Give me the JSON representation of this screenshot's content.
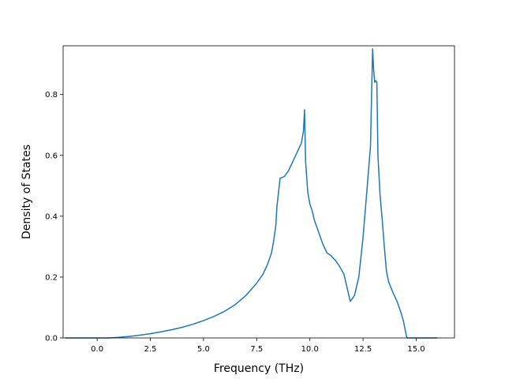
{
  "chart_data": {
    "type": "line",
    "title": "",
    "xlabel": "Frequency (THz)",
    "ylabel": "Density of States",
    "xlim": [
      -1.6,
      16.8
    ],
    "ylim": [
      0.0,
      0.96
    ],
    "xticks": [
      0.0,
      2.5,
      5.0,
      7.5,
      10.0,
      12.5,
      15.0
    ],
    "xtick_labels": [
      "0.0",
      "2.5",
      "5.0",
      "7.5",
      "10.0",
      "12.5",
      "15.0"
    ],
    "yticks": [
      0.0,
      0.2,
      0.4,
      0.6,
      0.8
    ],
    "ytick_labels": [
      "0.0",
      "0.2",
      "0.4",
      "0.6",
      "0.8"
    ],
    "grid": false,
    "series": [
      {
        "color": "#1f77b4",
        "x": [
          -1.5,
          -1.0,
          -0.5,
          0.0,
          0.5,
          1.0,
          1.5,
          2.0,
          2.5,
          3.0,
          3.5,
          4.0,
          4.5,
          5.0,
          5.5,
          6.0,
          6.5,
          7.0,
          7.5,
          7.8,
          8.0,
          8.2,
          8.3,
          8.4,
          8.45,
          8.6,
          8.8,
          9.0,
          9.2,
          9.4,
          9.6,
          9.7,
          9.75,
          9.8,
          9.9,
          10.0,
          10.1,
          10.2,
          10.4,
          10.6,
          10.8,
          11.0,
          11.2,
          11.4,
          11.6,
          11.8,
          11.9,
          12.1,
          12.3,
          12.5,
          12.7,
          12.85,
          12.95,
          13.0,
          13.05,
          13.1,
          13.15,
          13.2,
          13.3,
          13.4,
          13.5,
          13.6,
          13.7,
          13.9,
          14.1,
          14.3,
          14.4,
          14.5,
          14.55,
          14.6,
          14.7,
          15.0,
          15.5,
          16.0
        ],
        "y": [
          0.0,
          0.0,
          0.0,
          0.0,
          0.0,
          0.002,
          0.005,
          0.009,
          0.014,
          0.02,
          0.027,
          0.035,
          0.045,
          0.057,
          0.071,
          0.088,
          0.11,
          0.14,
          0.18,
          0.21,
          0.24,
          0.28,
          0.32,
          0.37,
          0.43,
          0.525,
          0.53,
          0.55,
          0.58,
          0.61,
          0.64,
          0.68,
          0.75,
          0.58,
          0.48,
          0.44,
          0.42,
          0.39,
          0.35,
          0.31,
          0.28,
          0.27,
          0.255,
          0.235,
          0.21,
          0.15,
          0.12,
          0.14,
          0.2,
          0.33,
          0.5,
          0.63,
          0.95,
          0.88,
          0.84,
          0.845,
          0.84,
          0.6,
          0.47,
          0.39,
          0.3,
          0.22,
          0.185,
          0.15,
          0.12,
          0.08,
          0.055,
          0.02,
          0.003,
          0.0,
          0.0,
          0.0,
          0.0,
          0.0
        ]
      }
    ]
  }
}
